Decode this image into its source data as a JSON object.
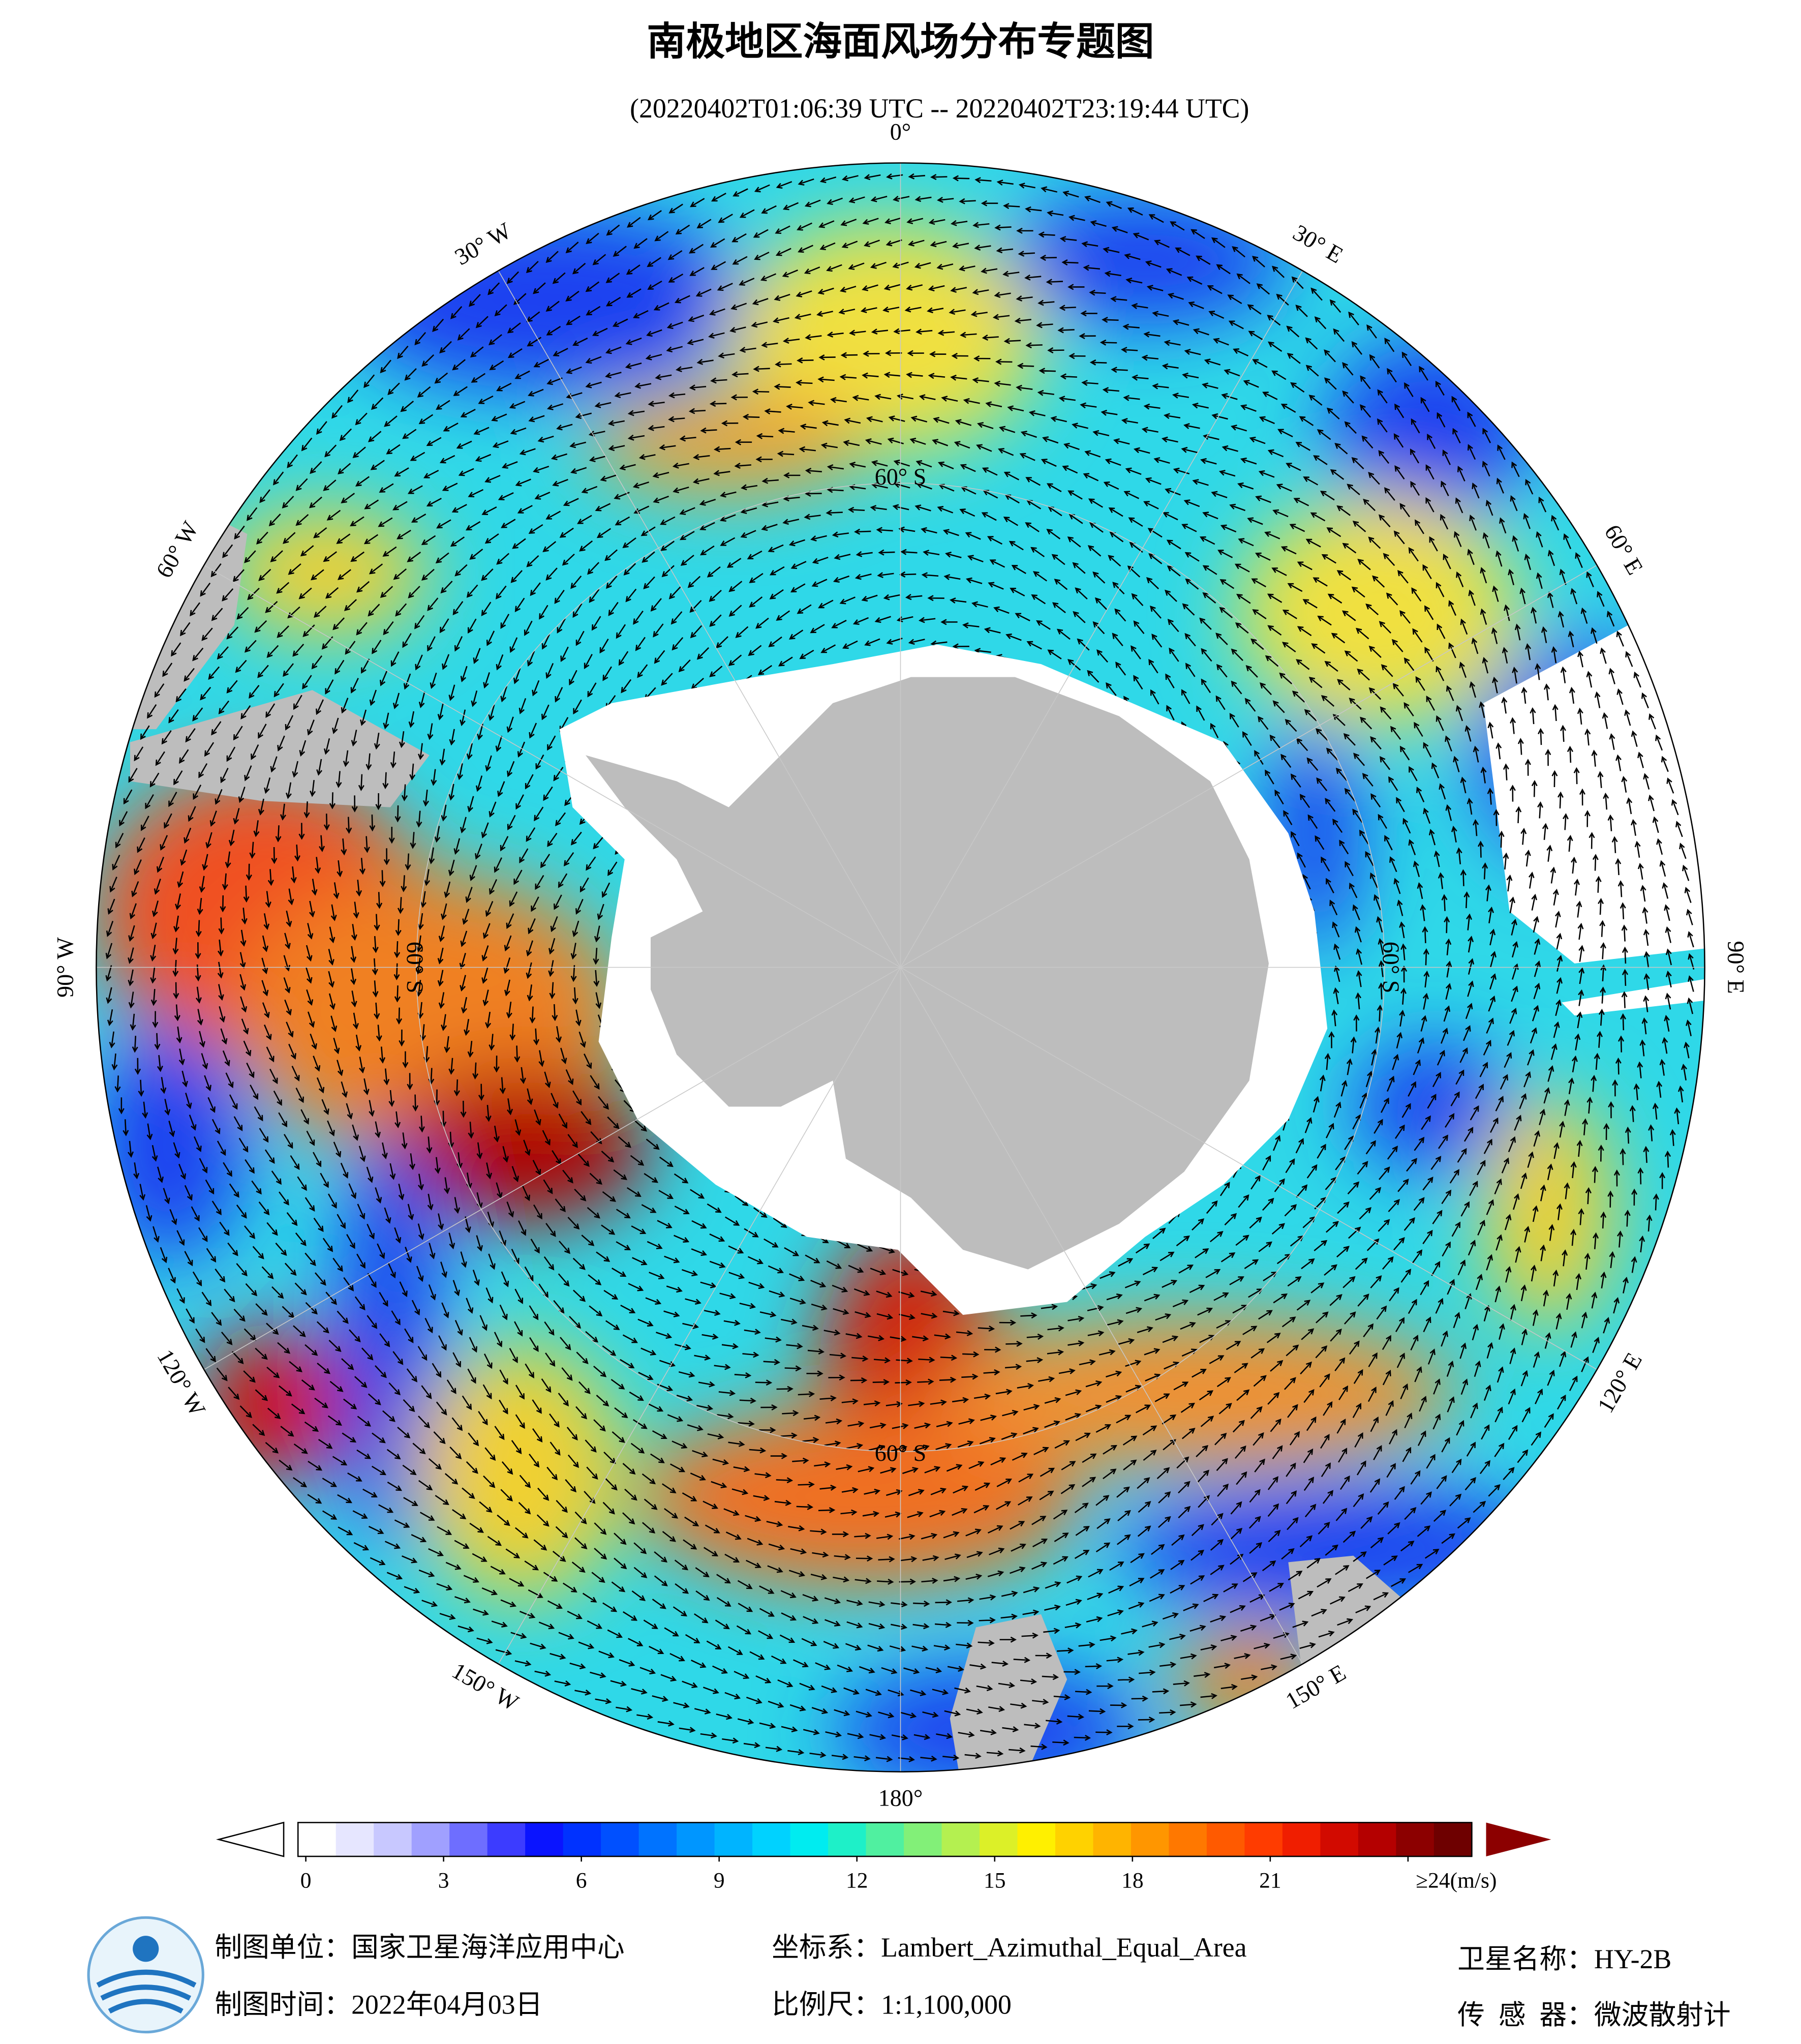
{
  "header": {
    "title": "南极地区海面风场分布专题图",
    "subtitle": "(20220402T01:06:39 UTC -- 20220402T23:19:44 UTC)"
  },
  "map": {
    "meridian_labels": [
      "0°",
      "30° E",
      "60° E",
      "90° E",
      "120° E",
      "150° E",
      "180°",
      "150° W",
      "120° W",
      "90° W",
      "60° W",
      "30° W"
    ],
    "parallel_labels": [
      "60° S",
      "60° S",
      "60° S",
      "60° S"
    ]
  },
  "colorbar": {
    "ticks": [
      0,
      3,
      6,
      9,
      12,
      15,
      18,
      21,
      {
        "value": 24,
        "label": "≥24(m/s)"
      }
    ],
    "colors": [
      "#ffffff",
      "#e6e6ff",
      "#c8c8ff",
      "#a0a0ff",
      "#6e6eff",
      "#3c3cff",
      "#0a14ff",
      "#0032ff",
      "#0050ff",
      "#0073ff",
      "#0096ff",
      "#00b4ff",
      "#00d2ff",
      "#00ecf0",
      "#1ef0c8",
      "#50f0a0",
      "#82f078",
      "#b4f050",
      "#dcf028",
      "#fff000",
      "#ffd200",
      "#ffb400",
      "#ff9600",
      "#ff7800",
      "#ff5a00",
      "#ff3c00",
      "#f01e00",
      "#d20a00",
      "#b40000",
      "#8c0000",
      "#6e0000"
    ]
  },
  "footer": {
    "producer": "制图单位：国家卫星海洋应用中心",
    "time": "制图时间：2022年04月03日",
    "crs": "坐标系：Lambert_Azimuthal_Equal_Area",
    "scale": "比例尺：1:1,100,000",
    "satellite": "卫星名称：HY-2B",
    "sensor": "传  感  器：微波散射计"
  }
}
